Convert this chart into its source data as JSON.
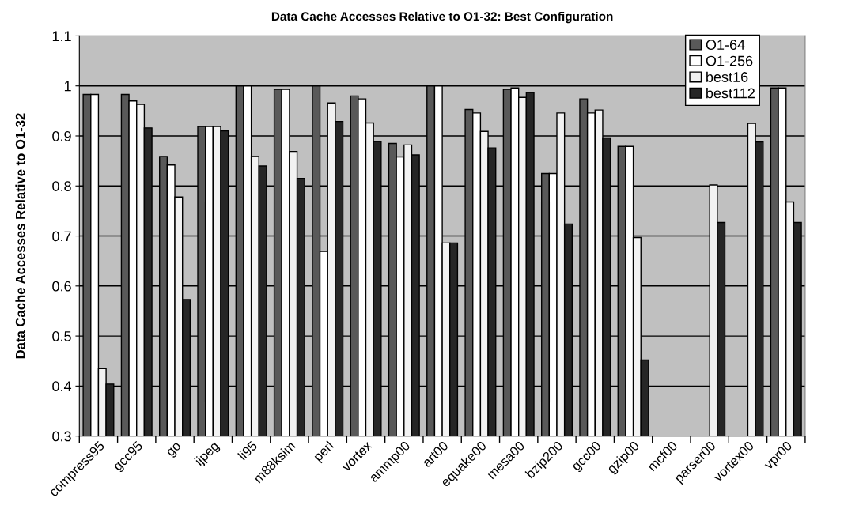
{
  "chart_data": {
    "type": "bar",
    "title": "Data Cache Accesses Relative to O1-32: Best Configuration",
    "ylabel": "Data Cache Accesses Relative to O1-32",
    "categories": [
      "compress95",
      "gcc95",
      "go",
      "ijpeg",
      "li95",
      "m88ksim",
      "perl",
      "vortex",
      "ammp00",
      "art00",
      "equake00",
      "mesa00",
      "bzip200",
      "gcc00",
      "gzip00",
      "mcf00",
      "parser00",
      "vortex00",
      "vpr00"
    ],
    "series": [
      {
        "name": "O1-64",
        "color": "#595959",
        "values": [
          0.983,
          0.983,
          0.859,
          0.919,
          1.0,
          0.993,
          1.0,
          0.98,
          0.885,
          1.0,
          0.953,
          0.993,
          0.825,
          0.974,
          0.879,
          null,
          null,
          null,
          0.996
        ]
      },
      {
        "name": "O1-256",
        "color": "#ffffff",
        "values": [
          0.983,
          0.97,
          0.842,
          0.919,
          1.0,
          0.993,
          0.669,
          0.974,
          0.858,
          1.0,
          0.946,
          0.996,
          0.825,
          0.946,
          0.879,
          null,
          null,
          null,
          0.996
        ]
      },
      {
        "name": "best16",
        "color": "#f2f2f2",
        "values": [
          0.435,
          0.963,
          0.778,
          0.919,
          0.859,
          0.869,
          0.966,
          0.926,
          0.882,
          0.686,
          0.909,
          0.977,
          0.946,
          0.952,
          0.697,
          null,
          0.802,
          0.925,
          0.768
        ]
      },
      {
        "name": "best112",
        "color": "#262626",
        "values": [
          0.404,
          0.916,
          0.573,
          0.91,
          0.84,
          0.815,
          0.929,
          0.889,
          0.862,
          0.686,
          0.876,
          0.987,
          0.724,
          0.896,
          0.452,
          null,
          0.727,
          0.888,
          0.727
        ]
      }
    ],
    "ylim": [
      0.3,
      1.1
    ],
    "yticks": [
      0.3,
      0.4,
      0.5,
      0.6,
      0.7,
      0.8,
      0.9,
      1,
      1.1
    ],
    "grid": "y",
    "legend": "top right"
  }
}
